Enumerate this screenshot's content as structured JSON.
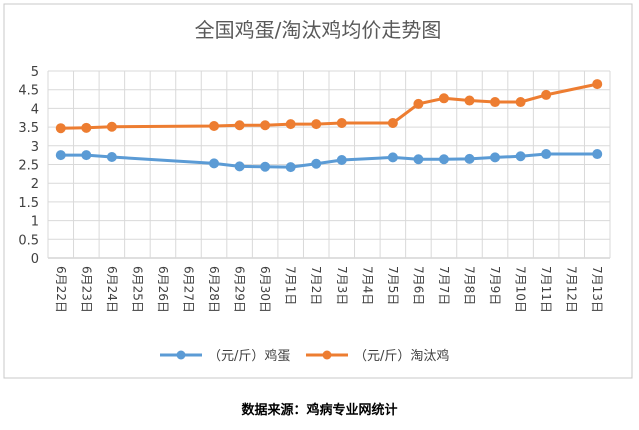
{
  "colors": {
    "egg": "#5b9bd5",
    "hen": "#ed7d31",
    "grid": "#d9d9d9",
    "axis_text": "#404040",
    "title_text": "#595959",
    "frame": "#c8c8c8"
  },
  "chart_data": {
    "type": "line",
    "title": "全国鸡蛋/淘汰鸡均价走势图",
    "xlabel": "",
    "ylabel": "",
    "ylim": [
      0,
      5
    ],
    "y_ticks": [
      "0",
      "0.5",
      "1",
      "1.5",
      "2",
      "2.5",
      "3",
      "3.5",
      "4",
      "4.5",
      "5"
    ],
    "grid": true,
    "legend_position": "bottom",
    "categories": [
      "6月22日",
      "6月23日",
      "6月24日",
      "6月25日",
      "6月26日",
      "6月27日",
      "6月28日",
      "6月29日",
      "6月30日",
      "7月1日",
      "7月2日",
      "7月3日",
      "7月4日",
      "7月5日",
      "7月6日",
      "7月7日",
      "7月8日",
      "7月9日",
      "7月10日",
      "7月11日",
      "7月12日",
      "7月13日"
    ],
    "series": [
      {
        "name": "（元/斤）鸡蛋",
        "color": "#5b9bd5",
        "values": [
          2.75,
          2.75,
          2.7,
          null,
          null,
          null,
          2.53,
          2.45,
          2.44,
          2.43,
          2.52,
          2.62,
          null,
          2.69,
          2.64,
          2.64,
          2.65,
          2.69,
          2.72,
          2.78,
          null,
          2.78
        ]
      },
      {
        "name": "（元/斤）淘汰鸡",
        "color": "#ed7d31",
        "values": [
          3.47,
          3.48,
          3.51,
          null,
          null,
          null,
          3.53,
          3.55,
          3.55,
          3.58,
          3.58,
          3.61,
          null,
          3.61,
          4.12,
          4.27,
          4.21,
          4.17,
          4.17,
          4.36,
          null,
          4.65
        ]
      }
    ]
  },
  "source_text": "数据来源：鸡病专业网统计"
}
